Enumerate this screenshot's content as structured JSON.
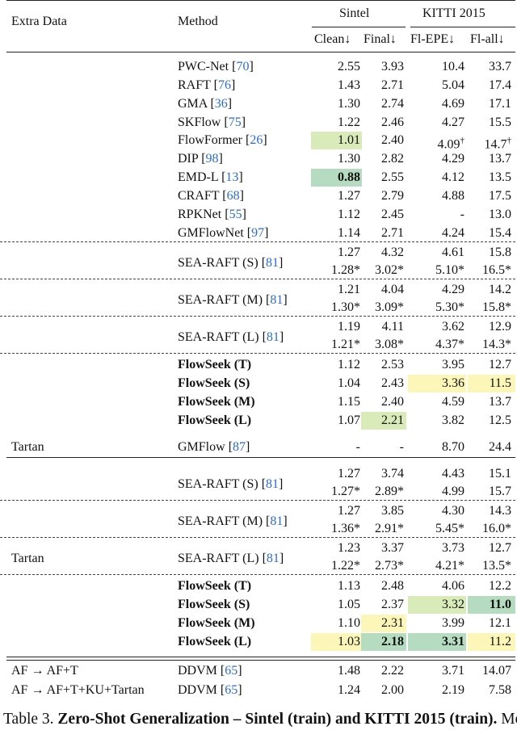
{
  "header": {
    "extra_data": "Extra Data",
    "method": "Method",
    "group_sintel": "Sintel",
    "group_kitti": "KITTI 2015",
    "col_clean": "Clean↓",
    "col_final": "Final↓",
    "col_epe": "Fl-EPE↓",
    "col_all": "Fl-all↓"
  },
  "colors": {
    "green_light": "#d8ebb8",
    "green_dark": "#b5dcc1",
    "yellow": "#fcf6b8",
    "citation": "#2a6bd6"
  },
  "rows": [
    {
      "extra": "",
      "name": "PWC-Net",
      "cite": "70",
      "c": [
        "2.55",
        "3.93",
        "10.4",
        "33.7"
      ]
    },
    {
      "extra": "",
      "name": "RAFT",
      "cite": "76",
      "c": [
        "1.43",
        "2.71",
        "5.04",
        "17.4"
      ]
    },
    {
      "extra": "",
      "name": "GMA",
      "cite": "36",
      "c": [
        "1.30",
        "2.74",
        "4.69",
        "17.1"
      ]
    },
    {
      "extra": "",
      "name": "SKFlow",
      "cite": "75",
      "c": [
        "1.22",
        "2.46",
        "4.27",
        "15.5"
      ]
    },
    {
      "extra": "",
      "name": "FlowFormer",
      "cite": "26",
      "c": [
        "1.01",
        "2.40",
        "4.09†",
        "14.7†"
      ],
      "hl": [
        "green_light",
        null,
        null,
        null
      ]
    },
    {
      "extra": "",
      "name": "DIP",
      "cite": "98",
      "c": [
        "1.30",
        "2.82",
        "4.29",
        "13.7"
      ]
    },
    {
      "extra": "",
      "name": "EMD-L",
      "cite": "13",
      "c": [
        "0.88",
        "2.55",
        "4.12",
        "13.5"
      ],
      "hl": [
        "green_dark",
        null,
        null,
        null
      ],
      "bold": [
        true,
        false,
        false,
        false
      ]
    },
    {
      "extra": "",
      "name": "CRAFT",
      "cite": "68",
      "c": [
        "1.27",
        "2.79",
        "4.88",
        "17.5"
      ]
    },
    {
      "extra": "",
      "name": "RPKNet",
      "cite": "55",
      "c": [
        "1.12",
        "2.45",
        "-",
        "13.0"
      ]
    },
    {
      "extra": "",
      "name": "GMFlowNet",
      "cite": "97",
      "c": [
        "1.14",
        "2.71",
        "4.24",
        "15.4"
      ]
    },
    {
      "extra": "",
      "name": "SEA-RAFT (S)",
      "cite": "81",
      "pair": [
        [
          "1.27",
          "4.32",
          "4.61",
          "15.8"
        ],
        [
          "1.28*",
          "3.02*",
          "5.10*",
          "16.5*"
        ]
      ]
    },
    {
      "extra": "",
      "name": "SEA-RAFT (M)",
      "cite": "81",
      "pair": [
        [
          "1.21",
          "4.04",
          "4.29",
          "14.2"
        ],
        [
          "1.30*",
          "3.09*",
          "5.30*",
          "15.8*"
        ]
      ]
    },
    {
      "extra": "",
      "name": "SEA-RAFT (L)",
      "cite": "81",
      "pair": [
        [
          "1.19",
          "4.11",
          "3.62",
          "12.9"
        ],
        [
          "1.21*",
          "3.08*",
          "4.37*",
          "14.3*"
        ]
      ]
    },
    {
      "extra": "",
      "name": "FlowSeek (T)",
      "bold_name": true,
      "c": [
        "1.12",
        "2.53",
        "3.95",
        "12.7"
      ]
    },
    {
      "extra": "",
      "name": "FlowSeek (S)",
      "bold_name": true,
      "c": [
        "1.04",
        "2.43",
        "3.36",
        "11.5"
      ],
      "hl": [
        null,
        null,
        "yellow",
        "yellow"
      ]
    },
    {
      "extra": "",
      "name": "FlowSeek (M)",
      "bold_name": true,
      "c": [
        "1.15",
        "2.40",
        "4.59",
        "13.7"
      ]
    },
    {
      "extra": "",
      "name": "FlowSeek (L)",
      "bold_name": true,
      "c": [
        "1.07",
        "2.21",
        "3.82",
        "12.5"
      ],
      "hl": [
        null,
        "green_light",
        null,
        null
      ]
    },
    {
      "extra": "Tartan",
      "name": "GMFlow",
      "cite": "87",
      "c": [
        "-",
        "-",
        "8.70",
        "24.4"
      ]
    },
    {
      "extra": "",
      "name": "SEA-RAFT (S)",
      "cite": "81",
      "pair": [
        [
          "1.27",
          "3.74",
          "4.43",
          "15.1"
        ],
        [
          "1.27*",
          "2.89*",
          "4.99",
          "15.7"
        ]
      ]
    },
    {
      "extra": "",
      "name": "SEA-RAFT (M)",
      "cite": "81",
      "pair": [
        [
          "1.27",
          "3.85",
          "4.30",
          "14.3"
        ],
        [
          "1.36*",
          "2.91*",
          "5.45*",
          "16.0*"
        ]
      ]
    },
    {
      "extra": "Tartan",
      "name": "SEA-RAFT (L)",
      "cite": "81",
      "pair": [
        [
          "1.23",
          "3.37",
          "3.73",
          "12.7"
        ],
        [
          "1.22*",
          "2.73*",
          "4.21*",
          "13.5*"
        ]
      ]
    },
    {
      "extra": "",
      "name": "FlowSeek (T)",
      "bold_name": true,
      "c": [
        "1.13",
        "2.48",
        "4.06",
        "12.2"
      ]
    },
    {
      "extra": "",
      "name": "FlowSeek (S)",
      "bold_name": true,
      "c": [
        "1.05",
        "2.37",
        "3.32",
        "11.0"
      ],
      "hl": [
        null,
        null,
        "green_light",
        "green_dark"
      ],
      "bold": [
        false,
        false,
        false,
        true
      ]
    },
    {
      "extra": "",
      "name": "FlowSeek (M)",
      "bold_name": true,
      "c": [
        "1.10",
        "2.31",
        "3.99",
        "12.1"
      ],
      "hl": [
        null,
        "yellow",
        null,
        null
      ]
    },
    {
      "extra": "",
      "name": "FlowSeek (L)",
      "bold_name": true,
      "c": [
        "1.03",
        "2.18",
        "3.31",
        "11.2"
      ],
      "hl": [
        "yellow",
        "green_dark",
        "green_dark",
        "yellow"
      ],
      "bold": [
        false,
        true,
        true,
        false
      ]
    },
    {
      "extra": "AF → AF+T",
      "name": "DDVM",
      "cite": "65",
      "c": [
        "1.48",
        "2.22",
        "3.71",
        "14.07"
      ]
    },
    {
      "extra": "AF → AF+T+KU+Tartan",
      "name": "DDVM",
      "cite": "65",
      "c": [
        "1.24",
        "2.00",
        "2.19",
        "7.58"
      ]
    }
  ],
  "caption": {
    "label": "Table 3.",
    "bold_text": "Zero-Shot Generalization – Sintel (train) and KITTI 2015 (train).",
    "text": "Methods on top are trained with “C→T” schedule. †"
  }
}
